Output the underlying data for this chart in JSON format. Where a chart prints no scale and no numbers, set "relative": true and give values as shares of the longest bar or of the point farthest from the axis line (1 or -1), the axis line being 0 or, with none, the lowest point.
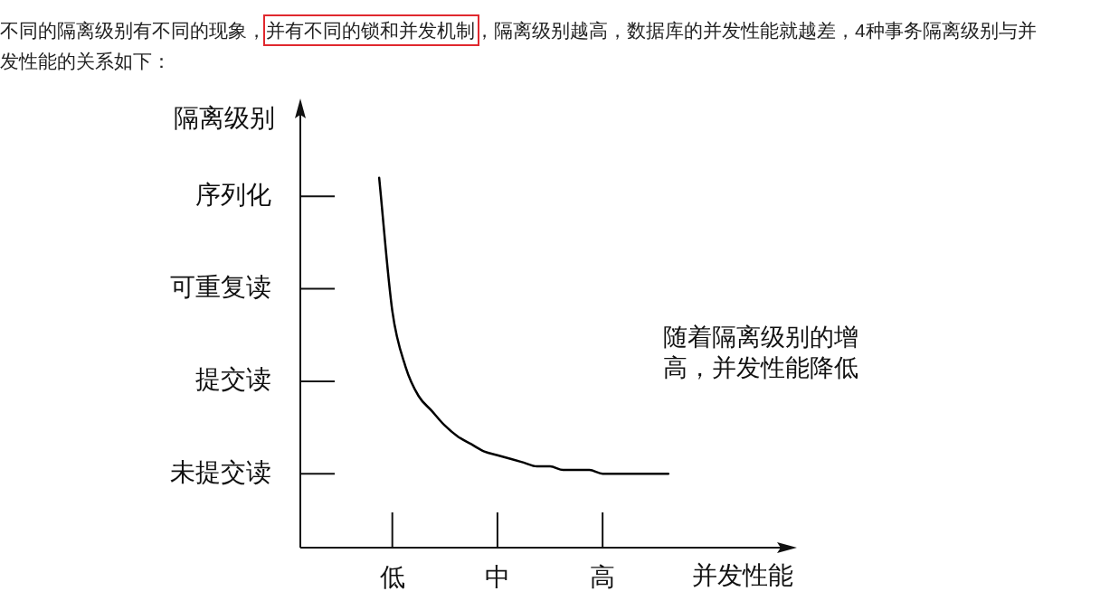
{
  "chart_data": {
    "type": "line",
    "title": "不同的隔离级别有不同的现象，并有不同的锁和并发机制，隔离级别越高，数据库的并发性能就越差，4种事务隔离级别与并发性能的关系如下：",
    "xlabel": "并发性能",
    "ylabel": "隔离级别",
    "annotations": [
      "随着隔离级别的增高，并发性能降低",
      "序列化",
      "可重复读",
      "提交读",
      "未提交读"
    ],
    "categories": [
      null,
      null,
      null,
      null,
      null,
      null,
      null,
      "低",
      null,
      null,
      null,
      null,
      null,
      null,
      null,
      "中",
      null,
      null,
      null,
      null,
      null,
      null,
      null,
      "高",
      null,
      null,
      null,
      null,
      null,
      null,
      null,
      null,
      null,
      null,
      null,
      null,
      null
    ],
    "relative": true,
    "series": [
      {
        "color": "#000000",
        "values": [
          null,
          null,
          null,
          null,
          null,
          null,
          1.0,
          0.64,
          0.49,
          0.41,
          0.37,
          0.33,
          0.3,
          0.28,
          0.26,
          0.25,
          0.24,
          0.23,
          0.22,
          0.22,
          0.21,
          0.21,
          0.21,
          0.2,
          0.2,
          0.2,
          0.2,
          0.2,
          0.2,
          null,
          null,
          null,
          null,
          null,
          null,
          null,
          null
        ]
      }
    ],
    "grid": false,
    "legend": false,
    "marker": "none",
    "line_style": "solid"
  }
}
